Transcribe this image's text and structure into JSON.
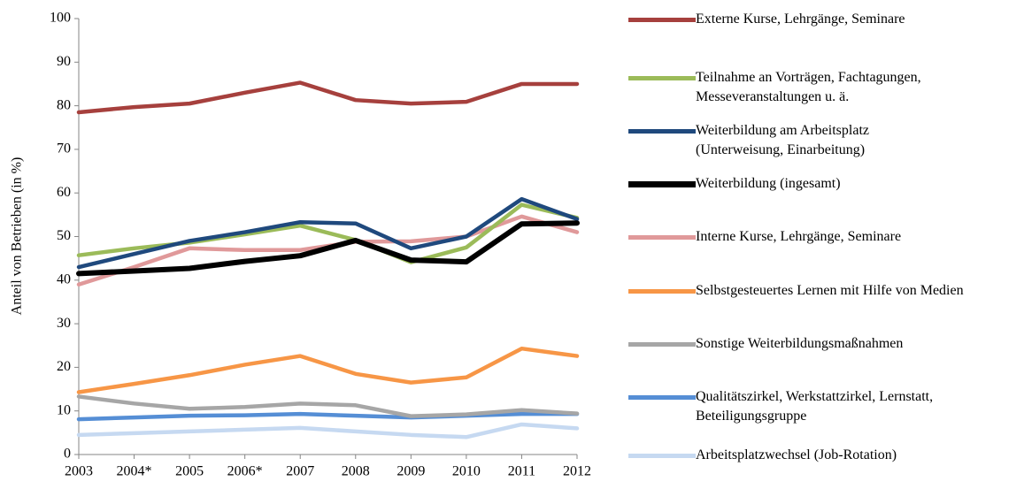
{
  "chart_data": {
    "type": "line",
    "ylabel": "Anteil von Betrieben (in %)",
    "categories": [
      "2003",
      "2004*",
      "2005",
      "2006*",
      "2007",
      "2008",
      "2009",
      "2010",
      "2011",
      "2012"
    ],
    "ylim": [
      0,
      100
    ],
    "yticks": [
      0,
      10,
      20,
      30,
      40,
      50,
      60,
      70,
      80,
      90,
      100
    ],
    "grid": false,
    "legend": "right",
    "series": [
      {
        "name": "Externe Kurse, Lehrgänge, Seminare",
        "color": "#a6403d",
        "values": [
          78.5,
          79.7,
          80.5,
          83,
          85.3,
          81.3,
          80.5,
          80.9,
          85,
          85
        ]
      },
      {
        "name": "Teilnahme an Vorträgen, Fachtagungen, Messeveranstaltungen u. ä.",
        "color": "#9bbb59",
        "values": [
          45.7,
          47.3,
          48.6,
          50.5,
          52.5,
          49.2,
          44.1,
          47.5,
          57.3,
          54.3
        ]
      },
      {
        "name": "Weiterbildung am Arbeitsplatz (Unterweisung, Einarbeitung)",
        "color": "#1f497d",
        "values": [
          43,
          46,
          49,
          51,
          53.3,
          53,
          47.3,
          50,
          58.6,
          54
        ]
      },
      {
        "name": "Weiterbildung (ingesamt)",
        "color": "#000000",
        "values": [
          41.5,
          42.1,
          42.7,
          44.3,
          45.6,
          49.1,
          44.6,
          44.2,
          52.9,
          53.1
        ]
      },
      {
        "name": "Interne Kurse, Lehrgänge, Seminare",
        "color": "#e0999a",
        "values": [
          39,
          43,
          47.3,
          46.9,
          46.9,
          48.8,
          48.9,
          50,
          54.6,
          51
        ]
      },
      {
        "name": "Selbstgesteuertes Lernen mit Hilfe von Medien",
        "color": "#f79646",
        "values": [
          14.3,
          16.2,
          18.2,
          20.6,
          22.6,
          18.5,
          16.5,
          17.7,
          24.3,
          22.6
        ]
      },
      {
        "name": "Sonstige Weiterbildungsmaßnahmen",
        "color": "#a6a6a6",
        "values": [
          13.3,
          11.7,
          10.5,
          10.9,
          11.7,
          11.3,
          8.8,
          9.2,
          10.2,
          9.4
        ]
      },
      {
        "name": "Qualitätszirkel, Werkstattzirkel, Lernstatt, Beteiligungsgruppe",
        "color": "#558ed5",
        "values": [
          8.1,
          8.5,
          8.9,
          9,
          9.3,
          8.9,
          8.5,
          8.9,
          9.3,
          9.3
        ]
      },
      {
        "name": "Arbeitsplatzwechsel (Job-Rotation)",
        "color": "#c6d9f1",
        "values": [
          4.5,
          4.9,
          5.3,
          5.7,
          6.1,
          5.3,
          4.5,
          4,
          6.9,
          6
        ]
      }
    ]
  }
}
